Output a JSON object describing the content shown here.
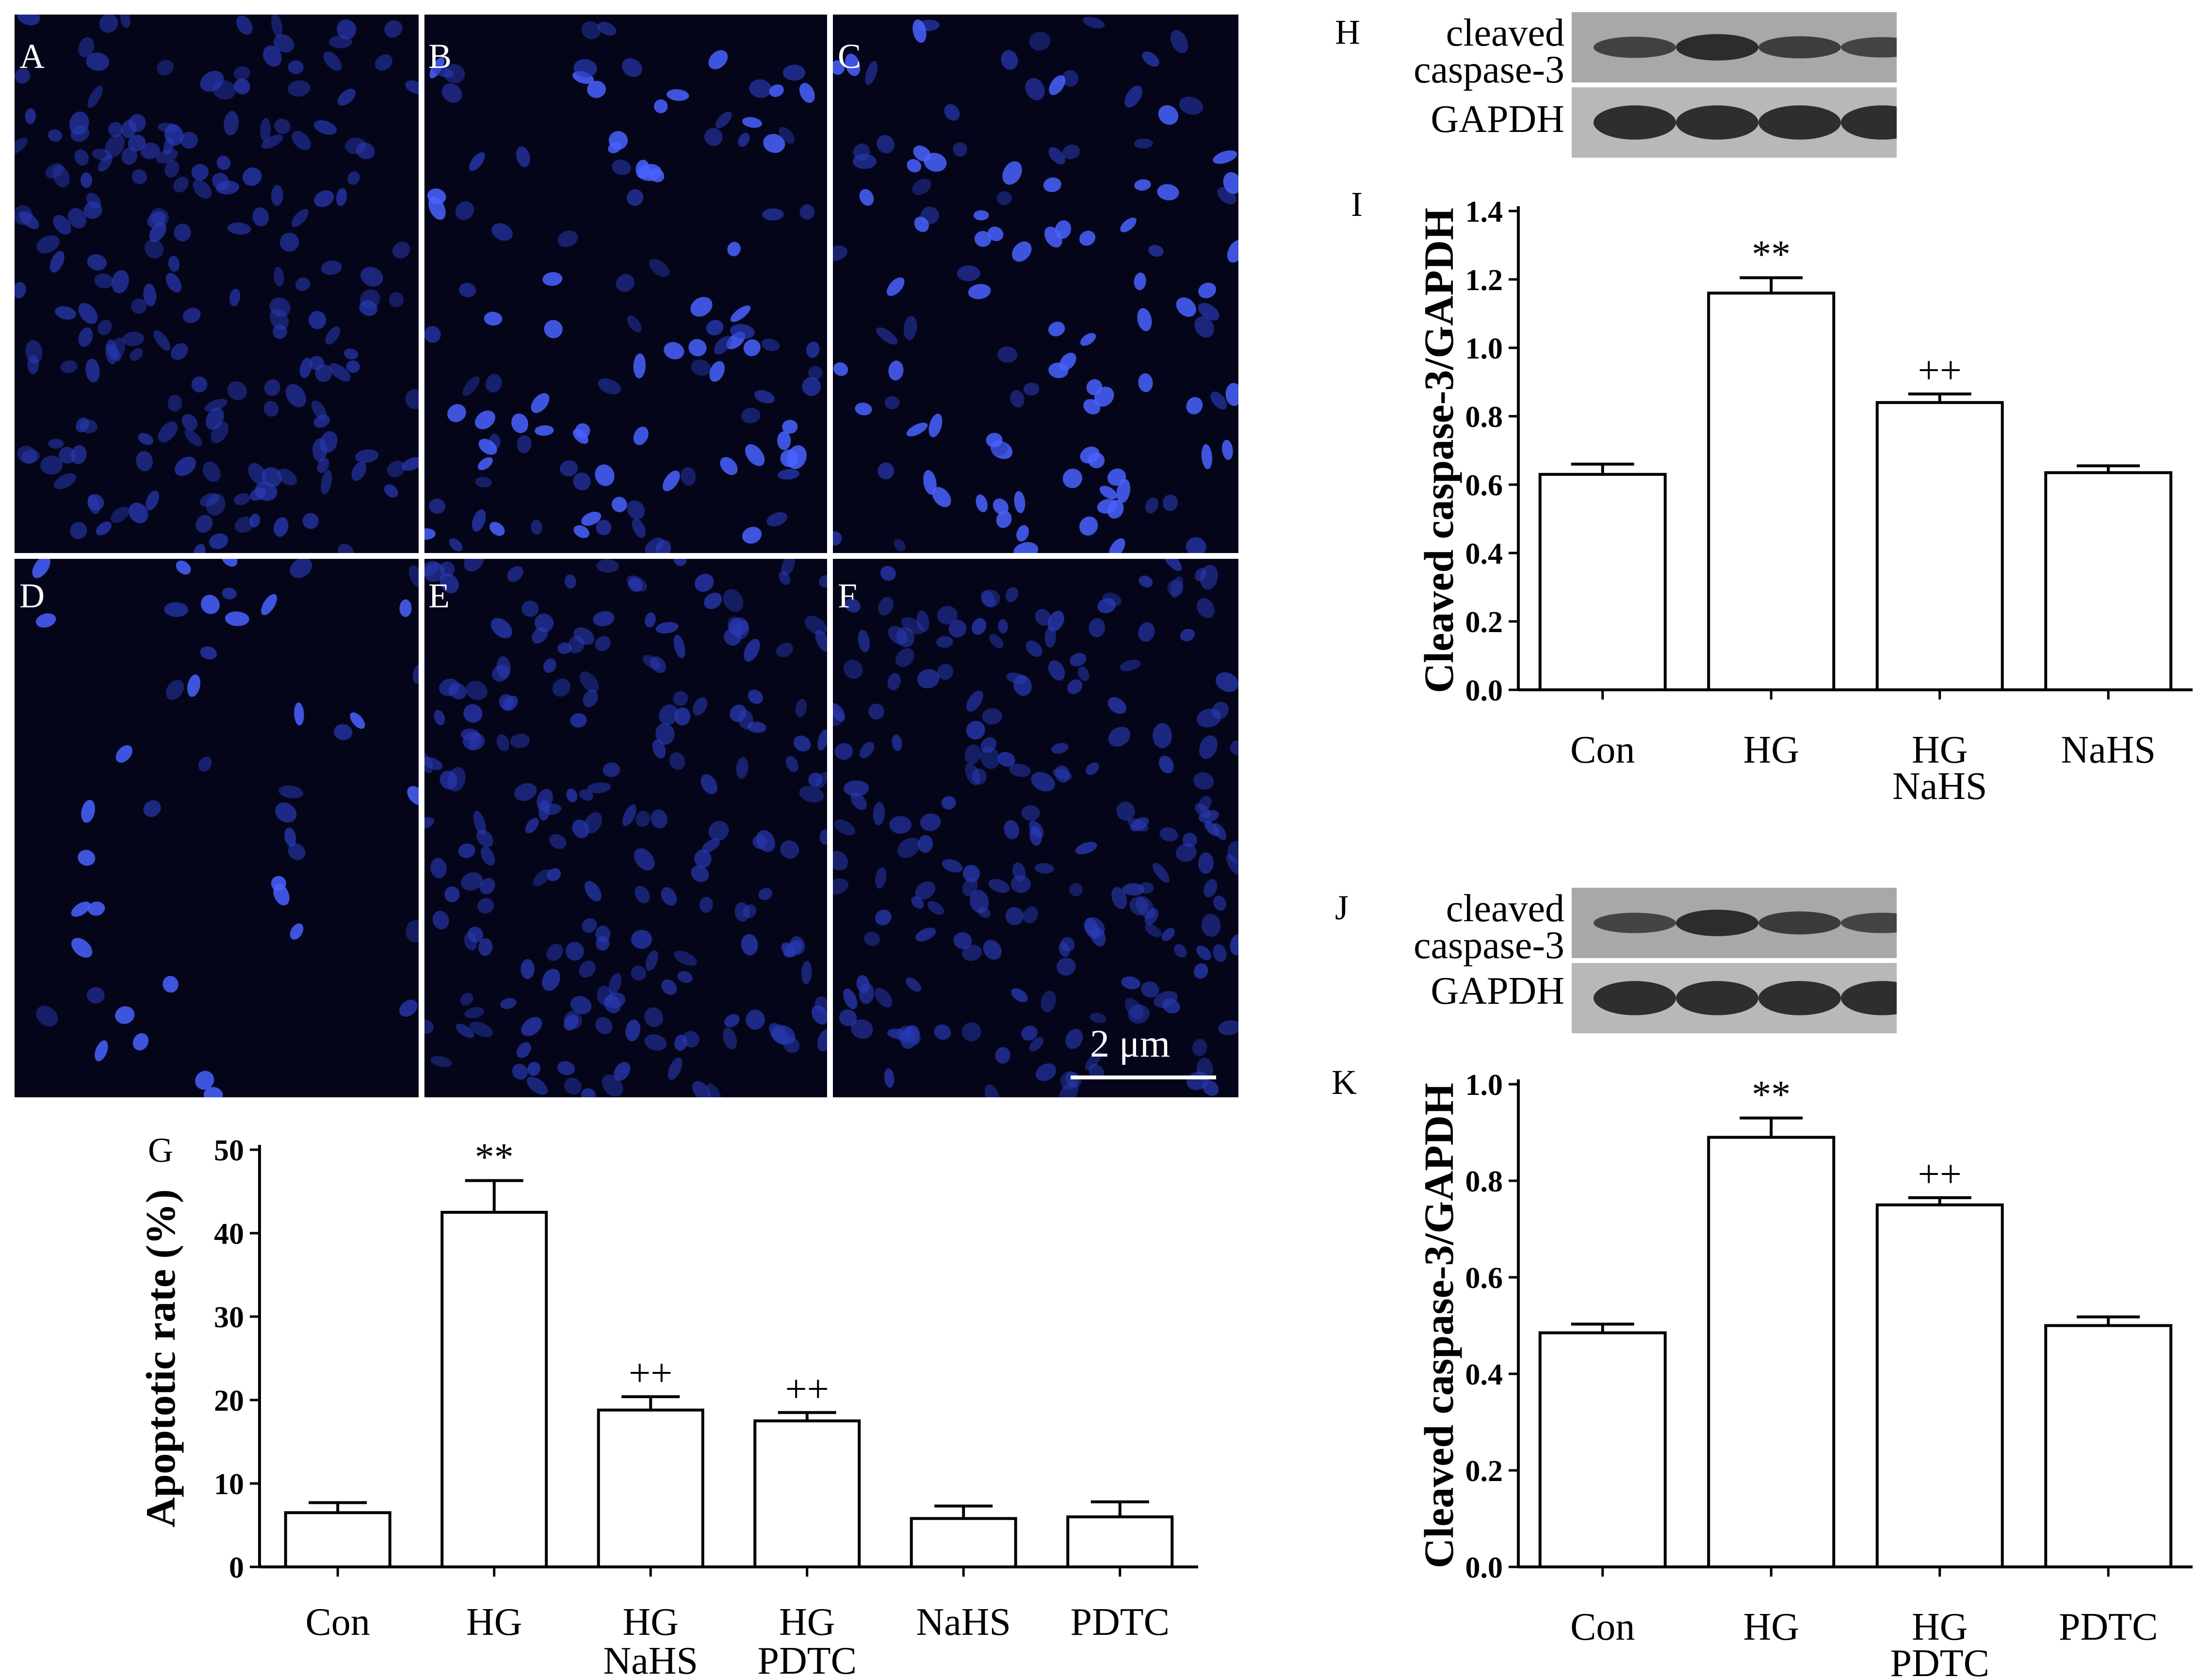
{
  "micrographs": {
    "panels": [
      {
        "letter": "A",
        "nuclei": "dense"
      },
      {
        "letter": "B",
        "nuclei": "bright"
      },
      {
        "letter": "C",
        "nuclei": "bright"
      },
      {
        "letter": "D",
        "nuclei": "sparse"
      },
      {
        "letter": "E",
        "nuclei": "dense"
      },
      {
        "letter": "F",
        "nuclei": "dense"
      }
    ],
    "scale_bar_label": "2 μm",
    "colors": {
      "background": "#05051a",
      "nucleus": "#2a3bb8",
      "bright_nucleus": "#4a63ff"
    }
  },
  "blots": [
    {
      "letter": "H",
      "rows": [
        {
          "label": "cleaved caspase-3",
          "band_intensity": [
            0.55,
            0.85,
            0.6,
            0.5
          ]
        },
        {
          "label": "GAPDH",
          "band_intensity": [
            0.85,
            0.85,
            0.85,
            0.85
          ]
        }
      ]
    },
    {
      "letter": "J",
      "rows": [
        {
          "label": "cleaved caspase-3",
          "band_intensity": [
            0.5,
            0.85,
            0.65,
            0.5
          ]
        },
        {
          "label": "GAPDH",
          "band_intensity": [
            0.85,
            0.85,
            0.85,
            0.85
          ]
        }
      ]
    }
  ],
  "chart_data": [
    {
      "letter": "G",
      "type": "bar",
      "categories": [
        [
          "Con"
        ],
        [
          "HG"
        ],
        [
          "HG",
          "NaHS"
        ],
        [
          "HG",
          "PDTC"
        ],
        [
          "NaHS"
        ],
        [
          "PDTC"
        ]
      ],
      "values": [
        6.5,
        42.5,
        18.8,
        17.5,
        5.8,
        6.0
      ],
      "errors": [
        1.2,
        3.8,
        1.6,
        1.0,
        1.5,
        1.8
      ],
      "annotations": [
        "",
        "**",
        "++",
        "++",
        "",
        ""
      ],
      "xlabel": "",
      "ylabel": "Apoptotic rate (%)",
      "ylim": [
        0,
        50
      ],
      "yticks": [
        "0",
        "10",
        "20",
        "30",
        "40",
        "50"
      ],
      "ytick_values": [
        0,
        10,
        20,
        30,
        40,
        50
      ],
      "grid": false
    },
    {
      "letter": "I",
      "type": "bar",
      "categories": [
        [
          "Con"
        ],
        [
          "HG"
        ],
        [
          "HG",
          "NaHS"
        ],
        [
          "NaHS"
        ]
      ],
      "values": [
        0.63,
        1.16,
        0.84,
        0.635
      ],
      "errors": [
        0.03,
        0.045,
        0.025,
        0.02
      ],
      "annotations": [
        "",
        "**",
        "++",
        ""
      ],
      "xlabel": "",
      "ylabel": "Cleaved caspase-3/GAPDH",
      "ylim": [
        0,
        1.4
      ],
      "yticks": [
        "0.0",
        "0.2",
        "0.4",
        "0.6",
        "0.8",
        "1.0",
        "1.2",
        "1.4"
      ],
      "ytick_values": [
        0,
        0.2,
        0.4,
        0.6,
        0.8,
        1.0,
        1.2,
        1.4
      ],
      "grid": false
    },
    {
      "letter": "K",
      "type": "bar",
      "categories": [
        [
          "Con"
        ],
        [
          "HG"
        ],
        [
          "HG",
          "PDTC"
        ],
        [
          "PDTC"
        ]
      ],
      "values": [
        0.485,
        0.89,
        0.75,
        0.5
      ],
      "errors": [
        0.018,
        0.04,
        0.015,
        0.018
      ],
      "annotations": [
        "",
        "**",
        "++",
        ""
      ],
      "xlabel": "",
      "ylabel": "Cleaved caspase-3/GAPDH",
      "ylim": [
        0,
        1.0
      ],
      "yticks": [
        "0.0",
        "0.2",
        "0.4",
        "0.6",
        "0.8",
        "1.0"
      ],
      "ytick_values": [
        0,
        0.2,
        0.4,
        0.6,
        0.8,
        1.0
      ],
      "grid": false
    }
  ]
}
